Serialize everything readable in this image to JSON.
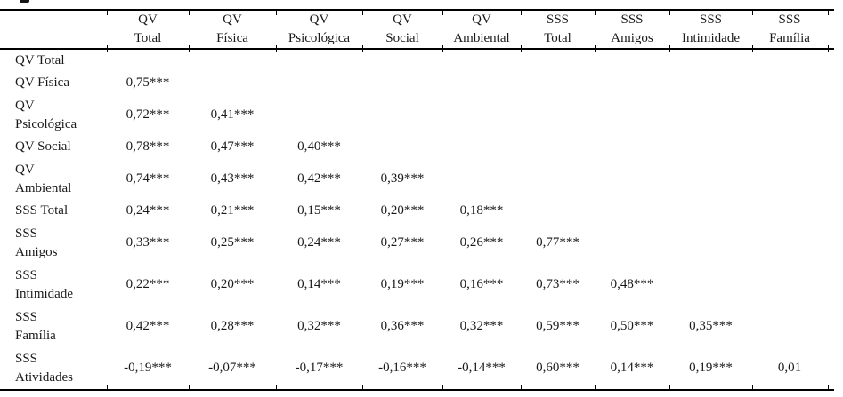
{
  "chart_data": {
    "type": "table",
    "columns": [
      {
        "line1": "QV",
        "line2": "Total"
      },
      {
        "line1": "QV",
        "line2": "Física"
      },
      {
        "line1": "QV",
        "line2": "Psicológica"
      },
      {
        "line1": "QV",
        "line2": "Social"
      },
      {
        "line1": "QV",
        "line2": "Ambiental"
      },
      {
        "line1": "SSS",
        "line2": "Total"
      },
      {
        "line1": "SSS",
        "line2": "Amigos"
      },
      {
        "line1": "SSS",
        "line2": "Intimidade"
      },
      {
        "line1": "SSS",
        "line2": "Família"
      }
    ],
    "rows": [
      {
        "label": "QV Total",
        "values": []
      },
      {
        "label": "QV Física",
        "values": [
          "0,75***"
        ]
      },
      {
        "label": "QV\nPsicológica",
        "values": [
          "0,72***",
          "0,41***"
        ]
      },
      {
        "label": "QV Social",
        "values": [
          "0,78***",
          "0,47***",
          "0,40***"
        ]
      },
      {
        "label": "QV\nAmbiental",
        "values": [
          "0,74***",
          "0,43***",
          "0,42***",
          "0,39***"
        ]
      },
      {
        "label": "SSS Total",
        "values": [
          "0,24***",
          "0,21***",
          "0,15***",
          "0,20***",
          "0,18***"
        ]
      },
      {
        "label": "SSS\nAmigos",
        "values": [
          "0,33***",
          "0,25***",
          "0,24***",
          "0,27***",
          "0,26***",
          "0,77***"
        ]
      },
      {
        "label": "SSS\nIntimidade",
        "values": [
          "0,22***",
          "0,20***",
          "0,14***",
          "0,19***",
          "0,16***",
          "0,73***",
          "0,48***"
        ]
      },
      {
        "label": "SSS\nFamília",
        "values": [
          "0,42***",
          "0,28***",
          "0,32***",
          "0,36***",
          "0,32***",
          "0,59***",
          "0,50***",
          "0,35***"
        ]
      },
      {
        "label": "SSS\nAtividades",
        "values": [
          "-0,19***",
          "-0,07***",
          "-0,17***",
          "-0,16***",
          "-0,14***",
          "0,60***",
          "0,14***",
          "0,19***",
          "0,01"
        ]
      }
    ]
  },
  "colors": {
    "background": "#ffffff",
    "text": "#1a1a1a",
    "rule": "#000000"
  }
}
